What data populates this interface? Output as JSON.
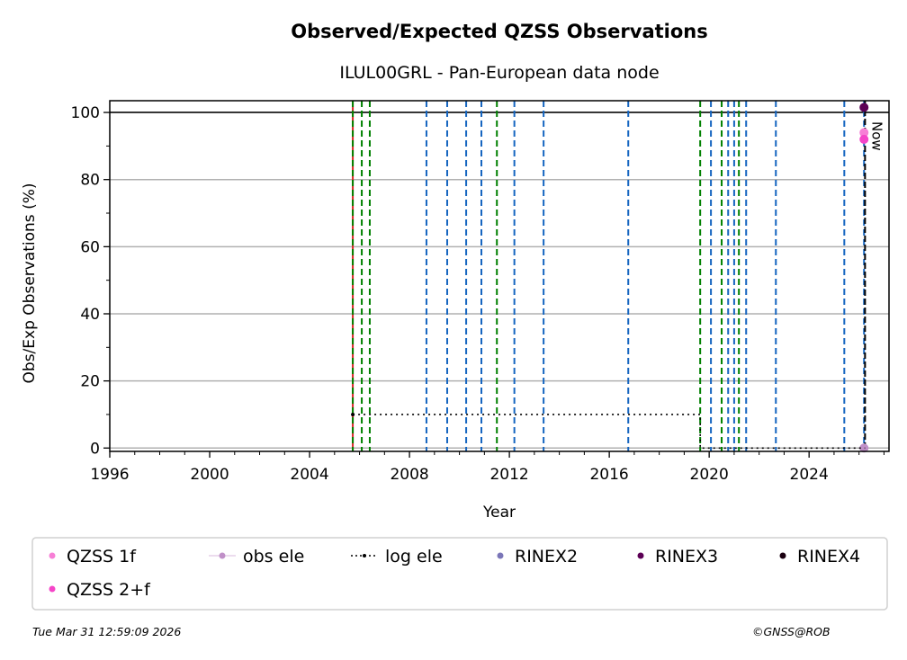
{
  "chart_data": {
    "type": "scatter",
    "title": "Observed/Expected QZSS Observations",
    "subtitle": "ILUL00GRL - Pan-European data node",
    "xlabel": "Year",
    "ylabel": "Obs/Exp Observations (%)",
    "xlim": [
      1996,
      2027.2
    ],
    "ylim": [
      -1,
      103.5
    ],
    "xticks": [
      1996,
      2000,
      2004,
      2008,
      2012,
      2016,
      2020,
      2024
    ],
    "yticks": [
      0,
      20,
      40,
      60,
      80,
      100
    ],
    "grid": "horizontal",
    "now_label": "Now",
    "now_year": 2026.24,
    "reference_line": 100,
    "red_line_year": 2005.73,
    "vlines_green": [
      2005.73,
      2006.09,
      2006.41,
      2011.5,
      2019.64,
      2020.5,
      2021.19
    ],
    "vlines_blue": [
      2008.68,
      2009.51,
      2010.27,
      2010.88,
      2012.2,
      2013.37,
      2016.76,
      2020.07,
      2020.76,
      2021.0,
      2021.48,
      2022.67,
      2025.41,
      2026.2
    ],
    "series": [
      {
        "name": "QZSS 1f",
        "color": "#f77fd6",
        "points": [
          [
            2026.2,
            94
          ]
        ]
      },
      {
        "name": "QZSS 2+f",
        "color": "#f545c8",
        "points": [
          [
            2026.2,
            92
          ]
        ]
      },
      {
        "name": "obs ele",
        "color": "#c090c8",
        "points": [
          [
            2026.2,
            0
          ]
        ]
      },
      {
        "name": "log ele",
        "color": "#000000",
        "points": [
          [
            2005.73,
            10
          ],
          [
            2019.64,
            10
          ],
          [
            2019.64,
            0
          ],
          [
            2026.24,
            0
          ]
        ]
      },
      {
        "name": "RINEX2",
        "color": "#7b76b8",
        "points": []
      },
      {
        "name": "RINEX3",
        "color": "#5c0055",
        "points": [
          [
            2026.2,
            101.5
          ]
        ]
      },
      {
        "name": "RINEX4",
        "color": "#1a0010",
        "points": []
      }
    ],
    "legend_placement": "bottom"
  },
  "footer": {
    "timestamp": "Tue Mar 31 12:59:09 2026",
    "credit": "©GNSS@ROB"
  }
}
